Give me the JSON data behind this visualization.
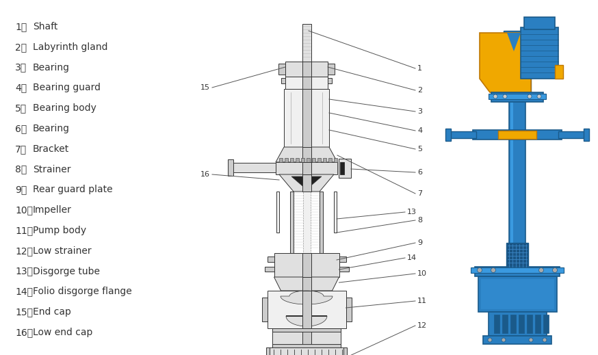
{
  "background_color": "#ffffff",
  "text_color": "#333333",
  "parts": [
    [
      "1、",
      "Shaft"
    ],
    [
      "2、",
      "Labyrinth gland"
    ],
    [
      "3、",
      "Bearing"
    ],
    [
      "4、",
      "Bearing guard"
    ],
    [
      "5、",
      "Bearing body"
    ],
    [
      "6、",
      "Bearing"
    ],
    [
      "7、",
      "Bracket"
    ],
    [
      "8、",
      "Strainer"
    ],
    [
      "9、",
      "Rear guard plate"
    ],
    [
      "10、",
      "Impeller"
    ],
    [
      "11、",
      "Pump body"
    ],
    [
      "12、",
      "Low strainer"
    ],
    [
      "13、",
      "Disgorge tube"
    ],
    [
      "14、",
      "Folio disgorge flange"
    ],
    [
      "15、",
      "End cap"
    ],
    [
      "16、",
      "Low end cap"
    ]
  ],
  "font_size": 10,
  "ann_font_size": 8,
  "line_color": "#555555",
  "dark_line": "#333333",
  "fill_light": "#f0f0f0",
  "fill_mid": "#e0e0e0",
  "fill_dark": "#cccccc",
  "ann_line_color": "#555555",
  "blue_main": "#2a7fc1",
  "blue_dark": "#1a5a8a",
  "blue_mid": "#3a9ae0",
  "yellow_main": "#f0a800",
  "yellow_dark": "#c07800"
}
